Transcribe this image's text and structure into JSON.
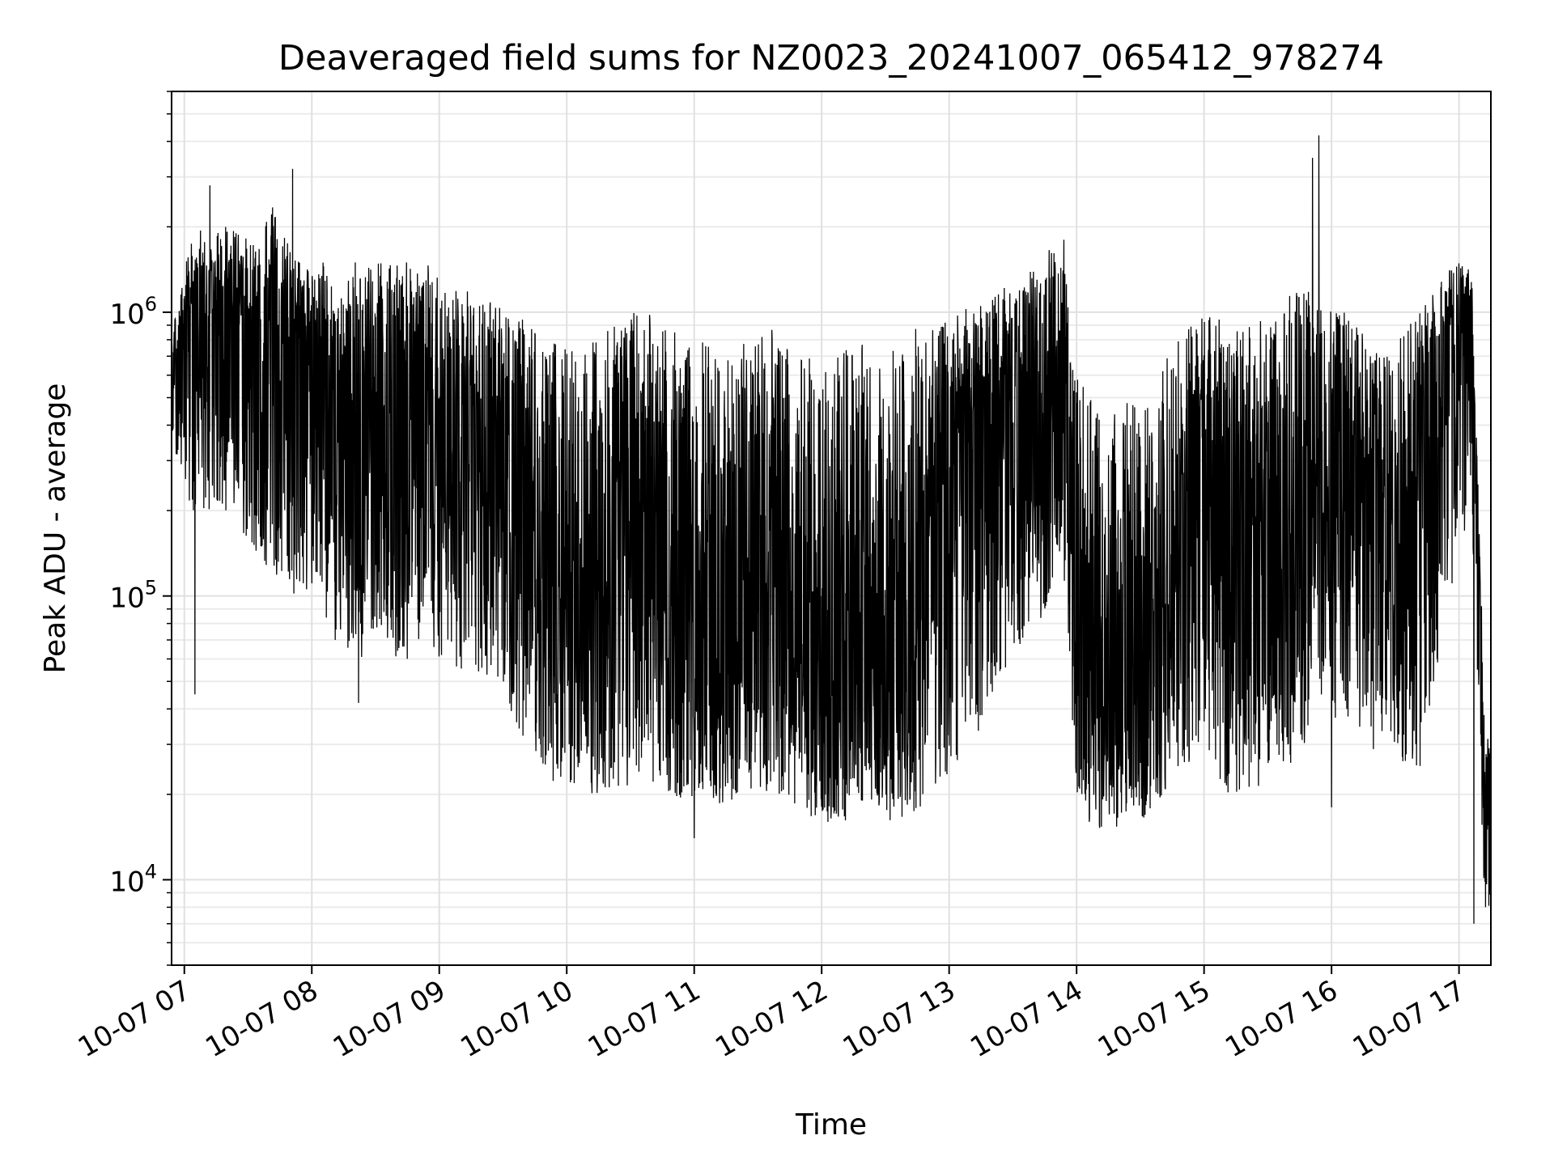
{
  "chart_data": {
    "type": "line",
    "title": "Deaveraged field sums for NZ0023_20241007_065412_978274",
    "xlabel": "Time",
    "ylabel": "Peak ADU - average",
    "yscale": "log",
    "ylim": [
      5000,
      6000000
    ],
    "xlim": [
      "2024-10-07 06:54",
      "2024-10-07 17:15"
    ],
    "x_ticks": [
      {
        "value": "2024-10-07 07:00",
        "label": "10-07 07"
      },
      {
        "value": "2024-10-07 08:00",
        "label": "10-07 08"
      },
      {
        "value": "2024-10-07 09:00",
        "label": "10-07 09"
      },
      {
        "value": "2024-10-07 10:00",
        "label": "10-07 10"
      },
      {
        "value": "2024-10-07 11:00",
        "label": "10-07 11"
      },
      {
        "value": "2024-10-07 12:00",
        "label": "10-07 12"
      },
      {
        "value": "2024-10-07 13:00",
        "label": "10-07 13"
      },
      {
        "value": "2024-10-07 14:00",
        "label": "10-07 14"
      },
      {
        "value": "2024-10-07 15:00",
        "label": "10-07 15"
      },
      {
        "value": "2024-10-07 16:00",
        "label": "10-07 16"
      },
      {
        "value": "2024-10-07 17:00",
        "label": "10-07 17"
      }
    ],
    "y_ticks": [
      {
        "value": 10000,
        "base": "10",
        "exp": "4"
      },
      {
        "value": 100000,
        "base": "10",
        "exp": "5"
      },
      {
        "value": 1000000,
        "base": "10",
        "exp": "6"
      }
    ],
    "grid": true,
    "legend": "none",
    "line_color": "#000000",
    "series": [
      {
        "x": [
          "2024-10-07 06:54",
          "2024-10-07 07:00",
          "2024-10-07 07:06",
          "2024-10-07 07:12",
          "2024-10-07 07:18",
          "2024-10-07 07:24",
          "2024-10-07 07:30",
          "2024-10-07 07:36",
          "2024-10-07 07:42",
          "2024-10-07 07:48",
          "2024-10-07 07:54",
          "2024-10-07 08:00",
          "2024-10-07 08:06",
          "2024-10-07 08:12",
          "2024-10-07 08:18",
          "2024-10-07 08:24",
          "2024-10-07 08:30",
          "2024-10-07 08:36",
          "2024-10-07 08:42",
          "2024-10-07 08:48",
          "2024-10-07 08:54",
          "2024-10-07 09:00",
          "2024-10-07 09:06",
          "2024-10-07 09:12",
          "2024-10-07 09:18",
          "2024-10-07 09:24",
          "2024-10-07 09:30",
          "2024-10-07 09:36",
          "2024-10-07 09:42",
          "2024-10-07 09:48",
          "2024-10-07 09:54",
          "2024-10-07 10:00",
          "2024-10-07 10:06",
          "2024-10-07 10:12",
          "2024-10-07 10:18",
          "2024-10-07 10:24",
          "2024-10-07 10:30",
          "2024-10-07 10:36",
          "2024-10-07 10:42",
          "2024-10-07 10:48",
          "2024-10-07 10:54",
          "2024-10-07 11:00",
          "2024-10-07 11:06",
          "2024-10-07 11:12",
          "2024-10-07 11:18",
          "2024-10-07 11:24",
          "2024-10-07 11:30",
          "2024-10-07 11:36",
          "2024-10-07 11:42",
          "2024-10-07 11:48",
          "2024-10-07 11:54",
          "2024-10-07 12:00",
          "2024-10-07 12:06",
          "2024-10-07 12:12",
          "2024-10-07 12:18",
          "2024-10-07 12:24",
          "2024-10-07 12:30",
          "2024-10-07 12:36",
          "2024-10-07 12:42",
          "2024-10-07 12:48",
          "2024-10-07 12:54",
          "2024-10-07 13:00",
          "2024-10-07 13:06",
          "2024-10-07 13:12",
          "2024-10-07 13:18",
          "2024-10-07 13:24",
          "2024-10-07 13:30",
          "2024-10-07 13:36",
          "2024-10-07 13:42",
          "2024-10-07 13:48",
          "2024-10-07 13:54",
          "2024-10-07 14:00",
          "2024-10-07 14:06",
          "2024-10-07 14:12",
          "2024-10-07 14:18",
          "2024-10-07 14:24",
          "2024-10-07 14:30",
          "2024-10-07 14:36",
          "2024-10-07 14:42",
          "2024-10-07 14:48",
          "2024-10-07 14:54",
          "2024-10-07 15:00",
          "2024-10-07 15:06",
          "2024-10-07 15:12",
          "2024-10-07 15:18",
          "2024-10-07 15:24",
          "2024-10-07 15:30",
          "2024-10-07 15:36",
          "2024-10-07 15:42",
          "2024-10-07 15:48",
          "2024-10-07 15:54",
          "2024-10-07 16:00",
          "2024-10-07 16:06",
          "2024-10-07 16:12",
          "2024-10-07 16:18",
          "2024-10-07 16:24",
          "2024-10-07 16:30",
          "2024-10-07 16:36",
          "2024-10-07 16:42",
          "2024-10-07 16:48",
          "2024-10-07 16:54",
          "2024-10-07 17:00",
          "2024-10-07 17:06",
          "2024-10-07 17:12",
          "2024-10-07 17:15"
        ],
        "y": [
          700000,
          800000,
          1000000,
          900000,
          900000,
          1000000,
          800000,
          900000,
          800000,
          700000,
          800000,
          600000,
          500000,
          500000,
          400000,
          400000,
          400000,
          400000,
          400000,
          500000,
          500000,
          400000,
          400000,
          400000,
          400000,
          350000,
          300000,
          250000,
          200000,
          170000,
          130000,
          100000,
          80000,
          80000,
          100000,
          150000,
          200000,
          200000,
          150000,
          100000,
          80000,
          100000,
          70000,
          60000,
          70000,
          100000,
          150000,
          100000,
          70000,
          60000,
          50000,
          60000,
          70000,
          80000,
          80000,
          70000,
          60000,
          60000,
          70000,
          100000,
          200000,
          250000,
          300000,
          300000,
          300000,
          300000,
          400000,
          500000,
          600000,
          700000,
          700000,
          100000,
          60000,
          50000,
          50000,
          40000,
          50000,
          60000,
          60000,
          150000,
          300000,
          250000,
          200000,
          200000,
          200000,
          200000,
          150000,
          150000,
          150000,
          200000,
          300000,
          400000,
          400000,
          300000,
          200000,
          200000,
          150000,
          150000,
          300000,
          600000,
          800000,
          900000,
          1000000,
          20000,
          15000
        ],
        "band_max": [
          800000,
          1500000,
          2000000,
          1800000,
          2000000,
          2000000,
          1800000,
          1800000,
          2500000,
          1800000,
          1500000,
          1500000,
          1500000,
          1200000,
          1500000,
          1500000,
          1500000,
          1500000,
          1500000,
          1500000,
          1500000,
          1300000,
          1300000,
          1200000,
          1200000,
          1200000,
          1000000,
          1000000,
          900000,
          800000,
          800000,
          800000,
          700000,
          800000,
          900000,
          900000,
          1000000,
          1100000,
          1000000,
          900000,
          800000,
          800000,
          800000,
          700000,
          700000,
          800000,
          900000,
          900000,
          800000,
          700000,
          700000,
          700000,
          700000,
          800000,
          800000,
          700000,
          800000,
          800000,
          900000,
          900000,
          1000000,
          1000000,
          1000000,
          1100000,
          1100000,
          1200000,
          1300000,
          1400000,
          1500000,
          1700000,
          1600000,
          600000,
          500000,
          500000,
          450000,
          500000,
          450000,
          500000,
          700000,
          800000,
          900000,
          1000000,
          1000000,
          900000,
          900000,
          1000000,
          1000000,
          1100000,
          1200000,
          1200000,
          1100000,
          1000000,
          1000000,
          900000,
          800000,
          700000,
          800000,
          900000,
          1000000,
          1200000,
          1400000,
          1500000,
          1400000,
          40000,
          30000
        ],
        "band_min": [
          400000,
          200000,
          200000,
          200000,
          200000,
          200000,
          150000,
          120000,
          120000,
          100000,
          100000,
          100000,
          80000,
          70000,
          60000,
          60000,
          70000,
          60000,
          60000,
          60000,
          60000,
          60000,
          60000,
          50000,
          50000,
          50000,
          40000,
          35000,
          30000,
          25000,
          22000,
          20000,
          20000,
          20000,
          20000,
          20000,
          22000,
          25000,
          20000,
          20000,
          18000,
          18000,
          18000,
          18000,
          18000,
          18000,
          20000,
          20000,
          20000,
          18000,
          16000,
          16000,
          16000,
          16000,
          18000,
          18000,
          16000,
          16000,
          17000,
          18000,
          20000,
          22000,
          25000,
          30000,
          40000,
          50000,
          60000,
          70000,
          80000,
          100000,
          120000,
          20000,
          16000,
          15000,
          15000,
          16000,
          16000,
          18000,
          20000,
          25000,
          25000,
          25000,
          22000,
          20000,
          20000,
          20000,
          25000,
          25000,
          25000,
          30000,
          40000,
          40000,
          30000,
          30000,
          30000,
          25000,
          25000,
          25000,
          25000,
          40000,
          80000,
          150000,
          200000,
          8000,
          7000
        ],
        "spikes": [
          {
            "x": "2024-10-07 07:05",
            "y": 45000
          },
          {
            "x": "2024-10-07 07:12",
            "y": 2800000
          },
          {
            "x": "2024-10-07 07:51",
            "y": 3200000
          },
          {
            "x": "2024-10-07 08:11",
            "y": 70000
          },
          {
            "x": "2024-10-07 08:22",
            "y": 42000
          },
          {
            "x": "2024-10-07 09:48",
            "y": 27000
          },
          {
            "x": "2024-10-07 11:00",
            "y": 14000
          },
          {
            "x": "2024-10-07 12:03",
            "y": 16000
          },
          {
            "x": "2024-10-07 13:54",
            "y": 1800000
          },
          {
            "x": "2024-10-07 14:06",
            "y": 16000
          },
          {
            "x": "2024-10-07 15:51",
            "y": 3500000
          },
          {
            "x": "2024-10-07 15:54",
            "y": 4200000
          },
          {
            "x": "2024-10-07 16:00",
            "y": 18000
          },
          {
            "x": "2024-10-07 17:07",
            "y": 7000
          }
        ]
      }
    ]
  }
}
